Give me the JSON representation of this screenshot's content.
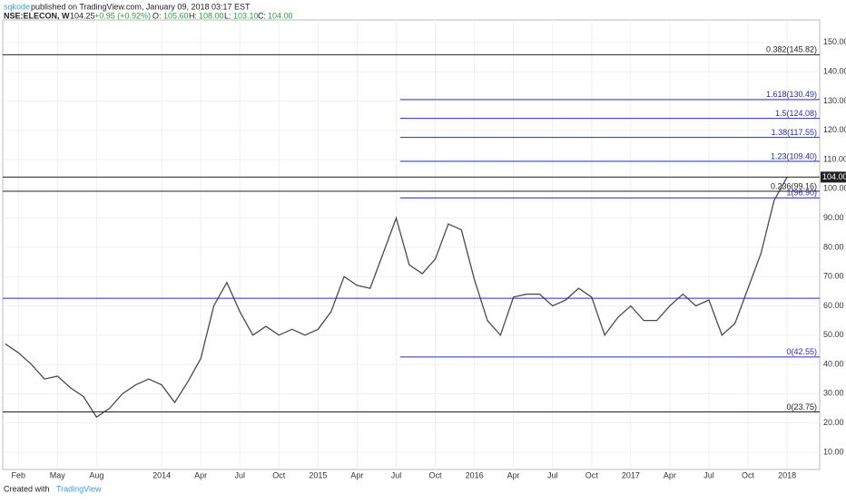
{
  "header": {
    "publisher": "sqkode",
    "published": "published on TradingView.com, January 09, 2018 03:17 EST",
    "symbol": "NSE:ELECON, W",
    "last": "104.25",
    "change": "+0.95 (+0.92%)",
    "o_label": "O:",
    "o": "105.60",
    "h_label": "H:",
    "h": "108.00",
    "l_label": "L:",
    "l": "103.10",
    "c_label": "C:",
    "c": "104.00"
  },
  "footer": {
    "created": "Created with",
    "brand": "TradingView"
  },
  "chart_data": {
    "type": "line",
    "x": [
      0,
      1,
      2,
      3,
      4,
      5,
      6,
      7,
      8,
      9,
      10,
      11,
      12,
      13,
      14,
      15,
      16,
      17,
      18,
      19,
      20,
      21,
      22,
      23,
      24,
      25,
      26,
      27,
      28,
      29,
      30,
      31,
      32,
      33,
      34,
      35,
      36,
      37,
      38,
      39,
      40,
      41,
      42,
      43,
      44,
      45,
      46,
      47,
      48,
      49,
      50,
      51,
      52,
      53,
      54,
      55,
      56,
      57,
      58,
      59,
      60
    ],
    "series": [
      {
        "color": "#4a4a4a",
        "values": [
          47,
          44,
          40,
          35,
          36,
          32,
          29,
          22,
          25,
          30,
          33,
          35,
          33,
          27,
          34,
          42,
          60,
          68,
          58,
          50,
          53,
          50,
          52,
          50,
          52,
          58,
          70,
          67,
          66,
          78,
          90,
          74,
          71,
          76,
          88,
          86,
          69,
          55,
          50,
          63,
          64,
          64,
          60,
          62,
          66,
          63,
          50,
          56,
          60,
          55,
          55,
          60,
          64,
          60,
          62,
          50,
          54,
          66,
          78,
          96,
          104
        ]
      }
    ],
    "xlim": [
      -0.2,
      62.5
    ],
    "xticks": [
      {
        "value": 1,
        "label": "Feb"
      },
      {
        "value": 4,
        "label": "May"
      },
      {
        "value": 7,
        "label": "Aug"
      },
      {
        "value": 12,
        "label": "2014"
      },
      {
        "value": 15,
        "label": "Apr"
      },
      {
        "value": 18,
        "label": "Jul"
      },
      {
        "value": 21,
        "label": "Oct"
      },
      {
        "value": 24,
        "label": "2015"
      },
      {
        "value": 27,
        "label": "Apr"
      },
      {
        "value": 30,
        "label": "Jul"
      },
      {
        "value": 33,
        "label": "Oct"
      },
      {
        "value": 36,
        "label": "2016"
      },
      {
        "value": 39,
        "label": "Apr"
      },
      {
        "value": 42,
        "label": "Jul"
      },
      {
        "value": 45,
        "label": "Oct"
      },
      {
        "value": 48,
        "label": "2017"
      },
      {
        "value": 51,
        "label": "Apr"
      },
      {
        "value": 54,
        "label": "Jul"
      },
      {
        "value": 57,
        "label": "Oct"
      },
      {
        "value": 60,
        "label": "2018"
      }
    ],
    "ylim": [
      4.1,
      157.7
    ],
    "yticks": [
      {
        "value": 10,
        "label": "10.00"
      },
      {
        "value": 20,
        "label": "20.00"
      },
      {
        "value": 30,
        "label": "30.00"
      },
      {
        "value": 40,
        "label": "40.00"
      },
      {
        "value": 50,
        "label": "50.00"
      },
      {
        "value": 60,
        "label": "60.00"
      },
      {
        "value": 70,
        "label": "70.00"
      },
      {
        "value": 80,
        "label": "80.00"
      },
      {
        "value": 90,
        "label": "90.00"
      },
      {
        "value": 100,
        "label": "100.00"
      },
      {
        "value": 110,
        "label": "110.00"
      },
      {
        "value": 120,
        "label": "120.00"
      },
      {
        "value": 130,
        "label": "130.00"
      },
      {
        "value": 140,
        "label": "140.00"
      },
      {
        "value": 150,
        "label": "150.00"
      }
    ],
    "grid": true,
    "levels": [
      {
        "value": 145.82,
        "label": "0.382(145.82)",
        "color": "#222222",
        "x0": -0.2
      },
      {
        "value": 130.49,
        "label": "1.618(130.49)",
        "color": "#2a2acc",
        "x0": 30.3
      },
      {
        "value": 124.08,
        "label": "1.5(124.08)",
        "color": "#2a2acc",
        "x0": 30.3
      },
      {
        "value": 117.55,
        "label": "1.38(117.55)",
        "color": "#2a2acc",
        "x0": 30.3
      },
      {
        "value": 109.4,
        "label": "1.23(109.40)",
        "color": "#2a2acc",
        "x0": 30.3
      },
      {
        "value": 104.0,
        "label": "104.00",
        "color": "#222222",
        "x0": -0.2,
        "price": true
      },
      {
        "value": 99.16,
        "label": "0.236(99.16)",
        "color": "#222222",
        "x0": -0.2
      },
      {
        "value": 96.9,
        "label": "1(96.90)",
        "color": "#2a2acc",
        "x0": 30.3
      },
      {
        "value": 62.6,
        "color": "#2a2acc",
        "x0": -0.2
      },
      {
        "value": 42.55,
        "label": "0(42.55)",
        "color": "#2a2acc",
        "x0": 30.3
      },
      {
        "value": 23.75,
        "label": "0(23.75)",
        "color": "#222222",
        "x0": -0.2
      }
    ]
  }
}
